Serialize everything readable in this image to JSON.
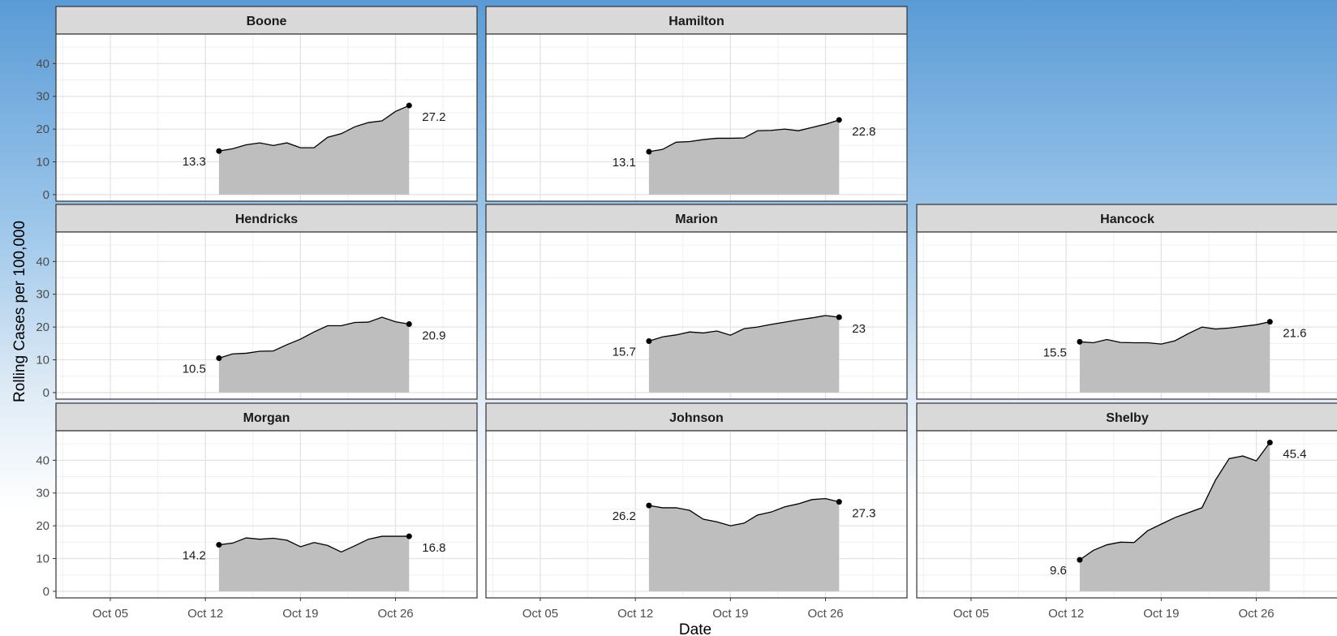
{
  "chart_data": {
    "type": "area",
    "xlabel": "Date",
    "ylabel": "Rolling Cases per 100,000",
    "x_ticks": [
      "Oct 05",
      "Oct 12",
      "Oct 19",
      "Oct 26"
    ],
    "y_ticks": [
      0,
      10,
      20,
      30,
      40
    ],
    "ylim": [
      -2,
      49
    ],
    "xlim_days": [
      1,
      32
    ],
    "grid": true,
    "fill_color": "#bebebe",
    "strip_color": "#d9d9d9",
    "dates": [
      "Oct 13",
      "Oct 14",
      "Oct 15",
      "Oct 16",
      "Oct 17",
      "Oct 18",
      "Oct 19",
      "Oct 20",
      "Oct 21",
      "Oct 22",
      "Oct 23",
      "Oct 24",
      "Oct 25",
      "Oct 26",
      "Oct 27"
    ],
    "panels": [
      {
        "name": "Boone",
        "row": 0,
        "col": 0,
        "start_label": "13.3",
        "end_label": "27.2",
        "values": [
          13.3,
          14.0,
          15.2,
          15.8,
          15.0,
          15.8,
          14.3,
          14.3,
          17.5,
          18.6,
          20.7,
          22.0,
          22.5,
          25.4,
          27.2
        ]
      },
      {
        "name": "Hamilton",
        "row": 0,
        "col": 1,
        "start_label": "13.1",
        "end_label": "22.8",
        "values": [
          13.1,
          13.8,
          16.0,
          16.2,
          16.8,
          17.2,
          17.2,
          17.3,
          19.5,
          19.6,
          20.0,
          19.5,
          20.5,
          21.5,
          22.8
        ]
      },
      {
        "name": "Hendricks",
        "row": 1,
        "col": 0,
        "start_label": "10.5",
        "end_label": "20.9",
        "values": [
          10.5,
          11.8,
          12.0,
          12.6,
          12.7,
          14.6,
          16.3,
          18.5,
          20.4,
          20.4,
          21.4,
          21.5,
          23.0,
          21.6,
          20.9
        ]
      },
      {
        "name": "Marion",
        "row": 1,
        "col": 1,
        "start_label": "15.7",
        "end_label": "23",
        "values": [
          15.7,
          17.0,
          17.6,
          18.5,
          18.2,
          18.8,
          17.5,
          19.5,
          20.0,
          20.8,
          21.5,
          22.2,
          22.8,
          23.5,
          23.0
        ]
      },
      {
        "name": "Hancock",
        "row": 1,
        "col": 2,
        "start_label": "15.5",
        "end_label": "21.6",
        "values": [
          15.5,
          15.2,
          16.2,
          15.3,
          15.2,
          15.2,
          14.8,
          15.8,
          18.0,
          20.0,
          19.4,
          19.7,
          20.2,
          20.7,
          21.6
        ]
      },
      {
        "name": "Morgan",
        "row": 2,
        "col": 0,
        "start_label": "14.2",
        "end_label": "16.8",
        "values": [
          14.2,
          14.7,
          16.3,
          15.9,
          16.2,
          15.6,
          13.6,
          14.9,
          14.0,
          12.0,
          13.9,
          15.9,
          16.8,
          16.8,
          16.8
        ]
      },
      {
        "name": "Johnson",
        "row": 2,
        "col": 1,
        "start_label": "26.2",
        "end_label": "27.3",
        "values": [
          26.2,
          25.5,
          25.5,
          24.7,
          22.0,
          21.2,
          20.0,
          20.8,
          23.3,
          24.2,
          25.8,
          26.7,
          28.0,
          28.3,
          27.3
        ]
      },
      {
        "name": "Shelby",
        "row": 2,
        "col": 2,
        "start_label": "9.6",
        "end_label": "45.4",
        "values": [
          9.6,
          12.5,
          14.2,
          15.0,
          14.9,
          18.5,
          20.5,
          22.5,
          24.0,
          25.5,
          34.0,
          40.5,
          41.3,
          39.8,
          45.4
        ]
      }
    ]
  }
}
